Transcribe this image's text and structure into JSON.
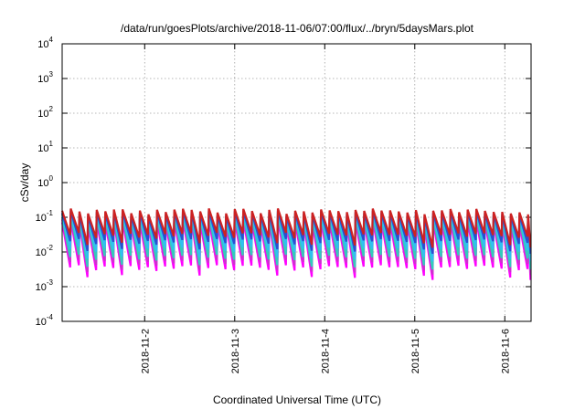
{
  "chart_data": {
    "type": "line",
    "title": "/data/run/goesPlots/archive/2018-11-06/07:00/flux/../bryn/5daysMars.plot",
    "xlabel": "Coordinated Universal Time (UTC)",
    "ylabel": "cSv/day",
    "yscale": "log",
    "ylim": [
      0.0001,
      10000
    ],
    "xlim": [
      "2018-11-01T02:00",
      "2018-11-06T07:00"
    ],
    "grid": true,
    "legend": "none",
    "x_ticks": [
      {
        "label": "2018-11-2",
        "value": "2018-11-02T00:00"
      },
      {
        "label": "2018-11-3",
        "value": "2018-11-03T00:00"
      },
      {
        "label": "2018-11-4",
        "value": "2018-11-04T00:00"
      },
      {
        "label": "2018-11-5",
        "value": "2018-11-05T00:00"
      },
      {
        "label": "2018-11-6",
        "value": "2018-11-06T00:00"
      }
    ],
    "y_ticks": [
      {
        "base": "10",
        "exp": "-4",
        "value": 0.0001
      },
      {
        "base": "10",
        "exp": "-3",
        "value": 0.001
      },
      {
        "base": "10",
        "exp": "-2",
        "value": 0.01
      },
      {
        "base": "10",
        "exp": "-1",
        "value": 0.1
      },
      {
        "base": "10",
        "exp": "0",
        "value": 1
      },
      {
        "base": "10",
        "exp": "1",
        "value": 10
      },
      {
        "base": "10",
        "exp": "2",
        "value": 100
      },
      {
        "base": "10",
        "exp": "3",
        "value": 1000
      },
      {
        "base": "10",
        "exp": "4",
        "value": 10000
      }
    ],
    "series_pattern": {
      "shape": "sawtooth",
      "cycles": 54,
      "period_hours": 2.3,
      "peak_range": [
        0.1,
        0.18
      ],
      "trough_range": [
        0.002,
        0.006
      ]
    },
    "series": [
      {
        "color": "#ff00ff",
        "peak": 0.07,
        "trough": 0.0035
      },
      {
        "color": "#cc33cc",
        "peak": 0.085,
        "trough": 0.005
      },
      {
        "color": "#33ccbb",
        "peak": 0.1,
        "trough": 0.007
      },
      {
        "color": "#30c0f0",
        "peak": 0.12,
        "trough": 0.012
      },
      {
        "color": "#2a4fd0",
        "peak": 0.13,
        "trough": 0.02
      },
      {
        "color": "#cc2222",
        "peak": 0.15,
        "trough": 0.03
      }
    ]
  }
}
